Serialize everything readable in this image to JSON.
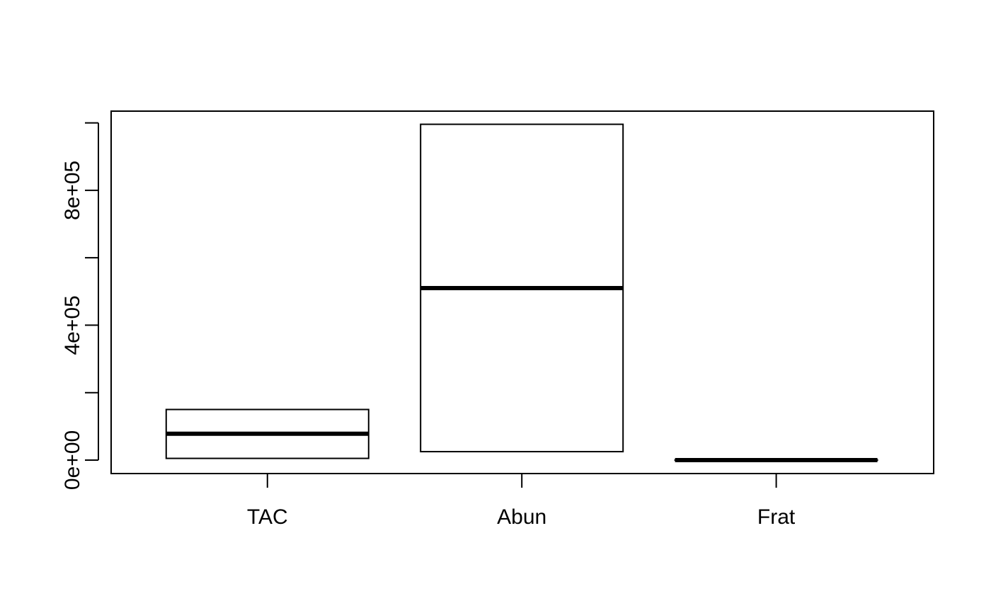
{
  "chart_data": {
    "type": "boxplot",
    "title": "",
    "xlabel": "",
    "ylabel": "",
    "categories": [
      "TAC",
      "Abun",
      "Frat"
    ],
    "ylim": [
      -40000,
      1035000
    ],
    "yticks": [
      0,
      200000,
      400000,
      600000,
      800000,
      1000000
    ],
    "ytick_labels": [
      "0e+00",
      "",
      "4e+05",
      "",
      "8e+05",
      ""
    ],
    "series": [
      {
        "category": "TAC",
        "q1": 5000,
        "median": 78000,
        "q3": 150000
      },
      {
        "category": "Abun",
        "q1": 25000,
        "median": 510000,
        "q3": 996000
      },
      {
        "category": "Frat",
        "q1": 0,
        "median": 0,
        "q3": 0
      }
    ],
    "grid": false,
    "colors": {
      "box_fill": "#ffffff",
      "stroke": "#000000"
    }
  }
}
